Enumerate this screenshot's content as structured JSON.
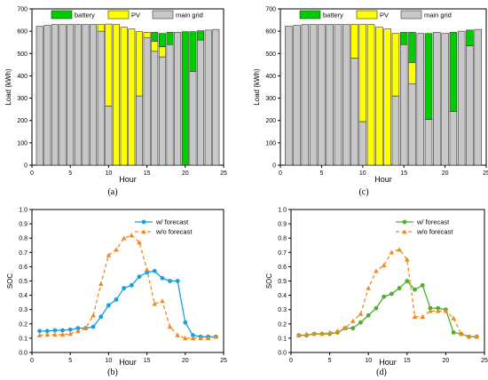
{
  "chart_data": [
    {
      "type": "bar",
      "subtype": "stacked",
      "caption": "(a)",
      "xlabel": "Hour",
      "ylabel": "Load (kWh)",
      "xlim": [
        0,
        25
      ],
      "ylim": [
        0,
        700
      ],
      "xticks": [
        0,
        5,
        10,
        15,
        20,
        25
      ],
      "yticks": [
        0,
        100,
        200,
        300,
        400,
        500,
        600,
        700
      ],
      "legend_position": "top",
      "x": [
        1,
        2,
        3,
        4,
        5,
        6,
        7,
        8,
        9,
        10,
        11,
        12,
        13,
        14,
        15,
        16,
        17,
        18,
        19,
        20,
        21,
        22,
        23,
        24
      ],
      "series": [
        {
          "name": "main grid",
          "color": "#c8c8c8",
          "values": [
            622,
            626,
            630,
            630,
            630,
            630,
            630,
            630,
            600,
            265,
            0,
            0,
            0,
            310,
            570,
            510,
            485,
            540,
            595,
            0,
            420,
            560,
            605,
            608
          ]
        },
        {
          "name": "PV",
          "color": "#ffff00",
          "values": [
            0,
            0,
            0,
            0,
            0,
            0,
            0,
            0,
            30,
            367,
            630,
            618,
            610,
            288,
            25,
            45,
            45,
            0,
            0,
            0,
            0,
            0,
            0,
            0
          ]
        },
        {
          "name": "battery",
          "color": "#00cc00",
          "values": [
            0,
            0,
            0,
            0,
            0,
            0,
            0,
            0,
            0,
            0,
            0,
            0,
            0,
            0,
            0,
            40,
            60,
            55,
            0,
            598,
            178,
            42,
            0,
            0
          ]
        }
      ]
    },
    {
      "type": "bar",
      "subtype": "stacked",
      "caption": "(c)",
      "xlabel": "Hour",
      "ylabel": "Load (kWh)",
      "xlim": [
        0,
        25
      ],
      "ylim": [
        0,
        700
      ],
      "xticks": [
        0,
        5,
        10,
        15,
        20,
        25
      ],
      "yticks": [
        0,
        100,
        200,
        300,
        400,
        500,
        600,
        700
      ],
      "legend_position": "top",
      "x": [
        1,
        2,
        3,
        4,
        5,
        6,
        7,
        8,
        9,
        10,
        11,
        12,
        13,
        14,
        15,
        16,
        17,
        18,
        19,
        20,
        21,
        22,
        23,
        24
      ],
      "series": [
        {
          "name": "main grid",
          "color": "#c8c8c8",
          "values": [
            622,
            626,
            630,
            630,
            630,
            630,
            630,
            630,
            480,
            195,
            0,
            0,
            0,
            310,
            540,
            365,
            590,
            205,
            595,
            590,
            240,
            600,
            535,
            608
          ]
        },
        {
          "name": "PV",
          "color": "#ffff00",
          "values": [
            0,
            0,
            0,
            0,
            0,
            0,
            0,
            0,
            150,
            435,
            630,
            618,
            610,
            280,
            0,
            95,
            0,
            0,
            0,
            0,
            0,
            0,
            0,
            0
          ]
        },
        {
          "name": "battery",
          "color": "#00cc00",
          "values": [
            0,
            0,
            0,
            0,
            0,
            0,
            0,
            0,
            0,
            0,
            0,
            0,
            0,
            0,
            55,
            135,
            0,
            385,
            0,
            0,
            355,
            0,
            70,
            0
          ]
        }
      ]
    },
    {
      "type": "line",
      "caption": "(b)",
      "xlabel": "Hour",
      "ylabel": "SOC",
      "xlim": [
        0,
        25
      ],
      "ylim": [
        0,
        1.0
      ],
      "xticks": [
        0,
        5,
        10,
        15,
        20,
        25
      ],
      "yticks": [
        0,
        0.1,
        0.2,
        0.3,
        0.4,
        0.5,
        0.6,
        0.7,
        0.8,
        0.9,
        1.0
      ],
      "legend_position": "top-right",
      "x": [
        1,
        2,
        3,
        4,
        5,
        6,
        7,
        8,
        9,
        10,
        11,
        12,
        13,
        14,
        15,
        16,
        17,
        18,
        19,
        20,
        21,
        22,
        23,
        24
      ],
      "series": [
        {
          "name": "w/ forecast",
          "color": "#1a9ee0",
          "marker": "circle",
          "dash": "solid",
          "values": [
            0.15,
            0.15,
            0.155,
            0.155,
            0.16,
            0.17,
            0.17,
            0.18,
            0.25,
            0.33,
            0.37,
            0.45,
            0.47,
            0.53,
            0.56,
            0.57,
            0.52,
            0.5,
            0.5,
            0.21,
            0.12,
            0.11,
            0.11,
            0.11
          ]
        },
        {
          "name": "w/o forecast",
          "color": "#f08a1c",
          "marker": "triangle",
          "dash": "dashed",
          "values": [
            0.12,
            0.125,
            0.125,
            0.125,
            0.13,
            0.15,
            0.17,
            0.26,
            0.48,
            0.68,
            0.72,
            0.8,
            0.82,
            0.77,
            0.58,
            0.34,
            0.36,
            0.18,
            0.12,
            0.1,
            0.1,
            0.1,
            0.1,
            0.11
          ]
        }
      ]
    },
    {
      "type": "line",
      "caption": "(d)",
      "xlabel": "Hour",
      "ylabel": "SOC",
      "xlim": [
        0,
        25
      ],
      "ylim": [
        0,
        1.0
      ],
      "xticks": [
        0,
        5,
        10,
        15,
        20,
        25
      ],
      "yticks": [
        0,
        0.1,
        0.2,
        0.3,
        0.4,
        0.5,
        0.6,
        0.7,
        0.8,
        0.9,
        1.0
      ],
      "legend_position": "top-right",
      "x": [
        1,
        2,
        3,
        4,
        5,
        6,
        7,
        8,
        9,
        10,
        11,
        12,
        13,
        14,
        15,
        16,
        17,
        18,
        19,
        20,
        21,
        22,
        23,
        24
      ],
      "series": [
        {
          "name": "w/ forecast",
          "color": "#4daf2a",
          "marker": "circle",
          "dash": "solid",
          "values": [
            0.12,
            0.12,
            0.13,
            0.13,
            0.13,
            0.14,
            0.17,
            0.17,
            0.21,
            0.26,
            0.31,
            0.39,
            0.41,
            0.45,
            0.5,
            0.44,
            0.47,
            0.31,
            0.31,
            0.3,
            0.14,
            0.13,
            0.11,
            0.11
          ]
        },
        {
          "name": "w/o forecast",
          "color": "#f08a1c",
          "marker": "triangle",
          "dash": "dashed",
          "values": [
            0.12,
            0.13,
            0.13,
            0.13,
            0.14,
            0.15,
            0.17,
            0.22,
            0.27,
            0.45,
            0.57,
            0.61,
            0.7,
            0.72,
            0.65,
            0.25,
            0.25,
            0.29,
            0.29,
            0.29,
            0.24,
            0.13,
            0.11,
            0.11
          ]
        }
      ]
    }
  ]
}
